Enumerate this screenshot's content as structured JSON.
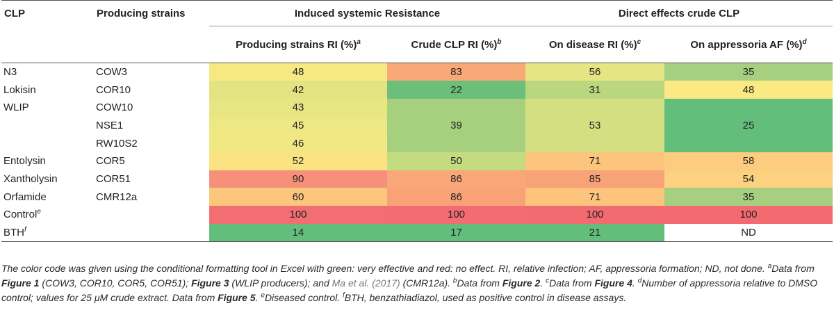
{
  "headers": {
    "clp": "CLP",
    "strains": "Producing strains",
    "group1": "Induced systemic Resistance",
    "group2": "Direct effects crude CLP",
    "col_strain_ri": "Producing strains RI (%)",
    "col_strain_ri_sup": "a",
    "col_crude_ri": "Crude CLP RI (%)",
    "col_crude_ri_sup": "b",
    "col_disease_ri": "On disease RI (%)",
    "col_disease_ri_sup": "c",
    "col_appress_af": "On appressoria AF (%)",
    "col_appress_af_sup": "d"
  },
  "rows": [
    {
      "clp": "N3",
      "clp_sup": "",
      "strain": "COW3",
      "strain_ri": "48",
      "crude_ri": "83",
      "disease_ri": "56",
      "appress": "35"
    },
    {
      "clp": "Lokisin",
      "clp_sup": "",
      "strain": "COR10",
      "strain_ri": "42",
      "crude_ri": "22",
      "disease_ri": "31",
      "appress": "48"
    },
    {
      "clp": "WLIP",
      "clp_sup": "",
      "strain": "COW10",
      "strain_ri": "43",
      "crude_ri": "39",
      "disease_ri": "53",
      "appress": "25"
    },
    {
      "clp": "",
      "clp_sup": "",
      "strain": "NSE1",
      "strain_ri": "45"
    },
    {
      "clp": "",
      "clp_sup": "",
      "strain": "RW10S2",
      "strain_ri": "46"
    },
    {
      "clp": "Entolysin",
      "clp_sup": "",
      "strain": "COR5",
      "strain_ri": "52",
      "crude_ri": "50",
      "disease_ri": "71",
      "appress": "58"
    },
    {
      "clp": "Xantholysin",
      "clp_sup": "",
      "strain": "COR51",
      "strain_ri": "90",
      "crude_ri": "86",
      "disease_ri": "85",
      "appress": "54"
    },
    {
      "clp": "Orfamide",
      "clp_sup": "",
      "strain": "CMR12a",
      "strain_ri": "60",
      "crude_ri": "86",
      "disease_ri": "71",
      "appress": "35"
    },
    {
      "clp": "Control",
      "clp_sup": "e",
      "strain": "",
      "strain_ri": "100",
      "crude_ri": "100",
      "disease_ri": "100",
      "appress": "100"
    },
    {
      "clp": "BTH",
      "clp_sup": "f",
      "strain": "",
      "strain_ri": "14",
      "crude_ri": "17",
      "disease_ri": "21",
      "appress": "ND"
    }
  ],
  "colors": {
    "c_48": "#f7e982",
    "c_83": "#f9a878",
    "c_56": "#e6e583",
    "c_35": "#a6d07f",
    "c_42": "#e4e383",
    "c_22": "#6cbf7a",
    "c_31": "#bad67f",
    "c_48b": "#fbe983",
    "c_43": "#e8e583",
    "c_39": "#a7d07e",
    "c_53": "#d3df81",
    "c_25": "#63be7b",
    "c_45": "#ede784",
    "c_46": "#f1e884",
    "c_52": "#fbe383",
    "c_50": "#c5db80",
    "c_71": "#fcc47c",
    "c_58": "#fdcc7e",
    "c_90": "#f6907a",
    "c_86": "#f9a778",
    "c_85": "#f8a377",
    "c_54": "#fcd17f",
    "c_60": "#fcc67c",
    "c_86b": "#f9a177",
    "c_71b": "#fcc47d",
    "c_35b": "#a6cf7f",
    "c_100": "#f26e72",
    "c_100b": "#f26c72",
    "c_100c": "#f26b71",
    "c_100d": "#f36b71",
    "c_14": "#63be7b",
    "c_17": "#63be7b",
    "c_21": "#63be7b",
    "nd": "#ffffff"
  },
  "notes": {
    "p1": "The color code was given using the conditional formatting tool in Excel with green: very effective and red: no effect. RI, relative infection; AF, appressoria formation; ND, not done. ",
    "a_sup": "a",
    "a_text1": "Data from ",
    "fig1": "Figure 1",
    "a_text2": " (COW3, COR10, COR5, COR51); ",
    "fig3": "Figure 3",
    "a_text3": " (WLIP producers); and ",
    "ref": "Ma et al. (2017)",
    "a_text4": " (CMR12a). ",
    "b_sup": "b",
    "b_text": "Data from ",
    "fig2": "Figure 2",
    "b_end": ". ",
    "c_sup": "c",
    "c_text": "Data from ",
    "fig4": "Figure 4",
    "c_end": ".",
    "d_sup": "d",
    "d_text1": "Number of appressoria relative to DMSO control; values for 25 μM crude extract. Data from ",
    "fig5": "Figure 5",
    "d_end": ". ",
    "e_sup": "e",
    "e_text": "Diseased control. ",
    "f_sup": "f",
    "f_text": "BTH, benzathiadiazol, used as positive control in disease assays."
  }
}
